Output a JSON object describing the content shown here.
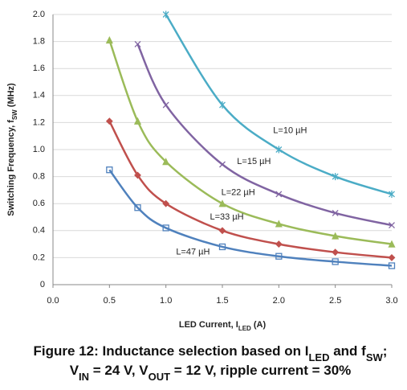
{
  "chart_data": {
    "type": "line",
    "caption": [
      [
        "Figure 12: Inductance selection based on I",
        "LED",
        " and f",
        "SW",
        ";"
      ],
      [
        "V",
        "IN",
        " =  24 V, V",
        "OUT",
        " = 12 V, ripple current = 30%"
      ]
    ],
    "xlabel": [
      "LED Current, I",
      "LED",
      "   (A)"
    ],
    "ylabel": [
      "Switching Frequency, f",
      "SW",
      " (MHz)"
    ],
    "x": [
      0.5,
      0.75,
      1.0,
      1.5,
      2.0,
      2.5,
      3.0
    ],
    "xlim": [
      0,
      3
    ],
    "ylim": [
      0,
      2
    ],
    "xticks": [
      {
        "value": 0,
        "label": "0.0"
      },
      0.5,
      {
        "value": 1,
        "label": "1.0"
      },
      1.5,
      {
        "value": 2,
        "label": "2.0"
      },
      2.5,
      {
        "value": 3,
        "label": "3.0"
      }
    ],
    "yticks": [
      0,
      0.2,
      0.4,
      0.6,
      0.8,
      {
        "value": 1,
        "label": "1.0"
      },
      1.2,
      1.4,
      1.6,
      1.8,
      {
        "value": 2,
        "label": "2.0"
      }
    ],
    "grid": true,
    "series": [
      {
        "name": "L=10 µH",
        "color": "#4bacc6",
        "marker": "asterisk",
        "values": [
          null,
          null,
          2.0,
          1.33,
          1.0,
          0.8,
          0.67
        ]
      },
      {
        "name": "L=15 µH",
        "color": "#8064a2",
        "marker": "x",
        "values": [
          null,
          1.78,
          1.33,
          0.89,
          0.67,
          0.53,
          0.44
        ]
      },
      {
        "name": "L=22 µH",
        "color": "#9bbb59",
        "marker": "triangle",
        "values": [
          1.81,
          1.21,
          0.91,
          0.6,
          0.45,
          0.36,
          0.3
        ]
      },
      {
        "name": "L=33 µH",
        "color": "#c0504d",
        "marker": "diamond",
        "values": [
          1.21,
          0.81,
          0.6,
          0.4,
          0.3,
          0.24,
          0.2
        ]
      },
      {
        "name": "L=47 µH",
        "color": "#4f81bd",
        "marker": "square",
        "values": [
          0.85,
          0.57,
          0.42,
          0.28,
          0.21,
          0.17,
          0.14
        ]
      }
    ]
  }
}
